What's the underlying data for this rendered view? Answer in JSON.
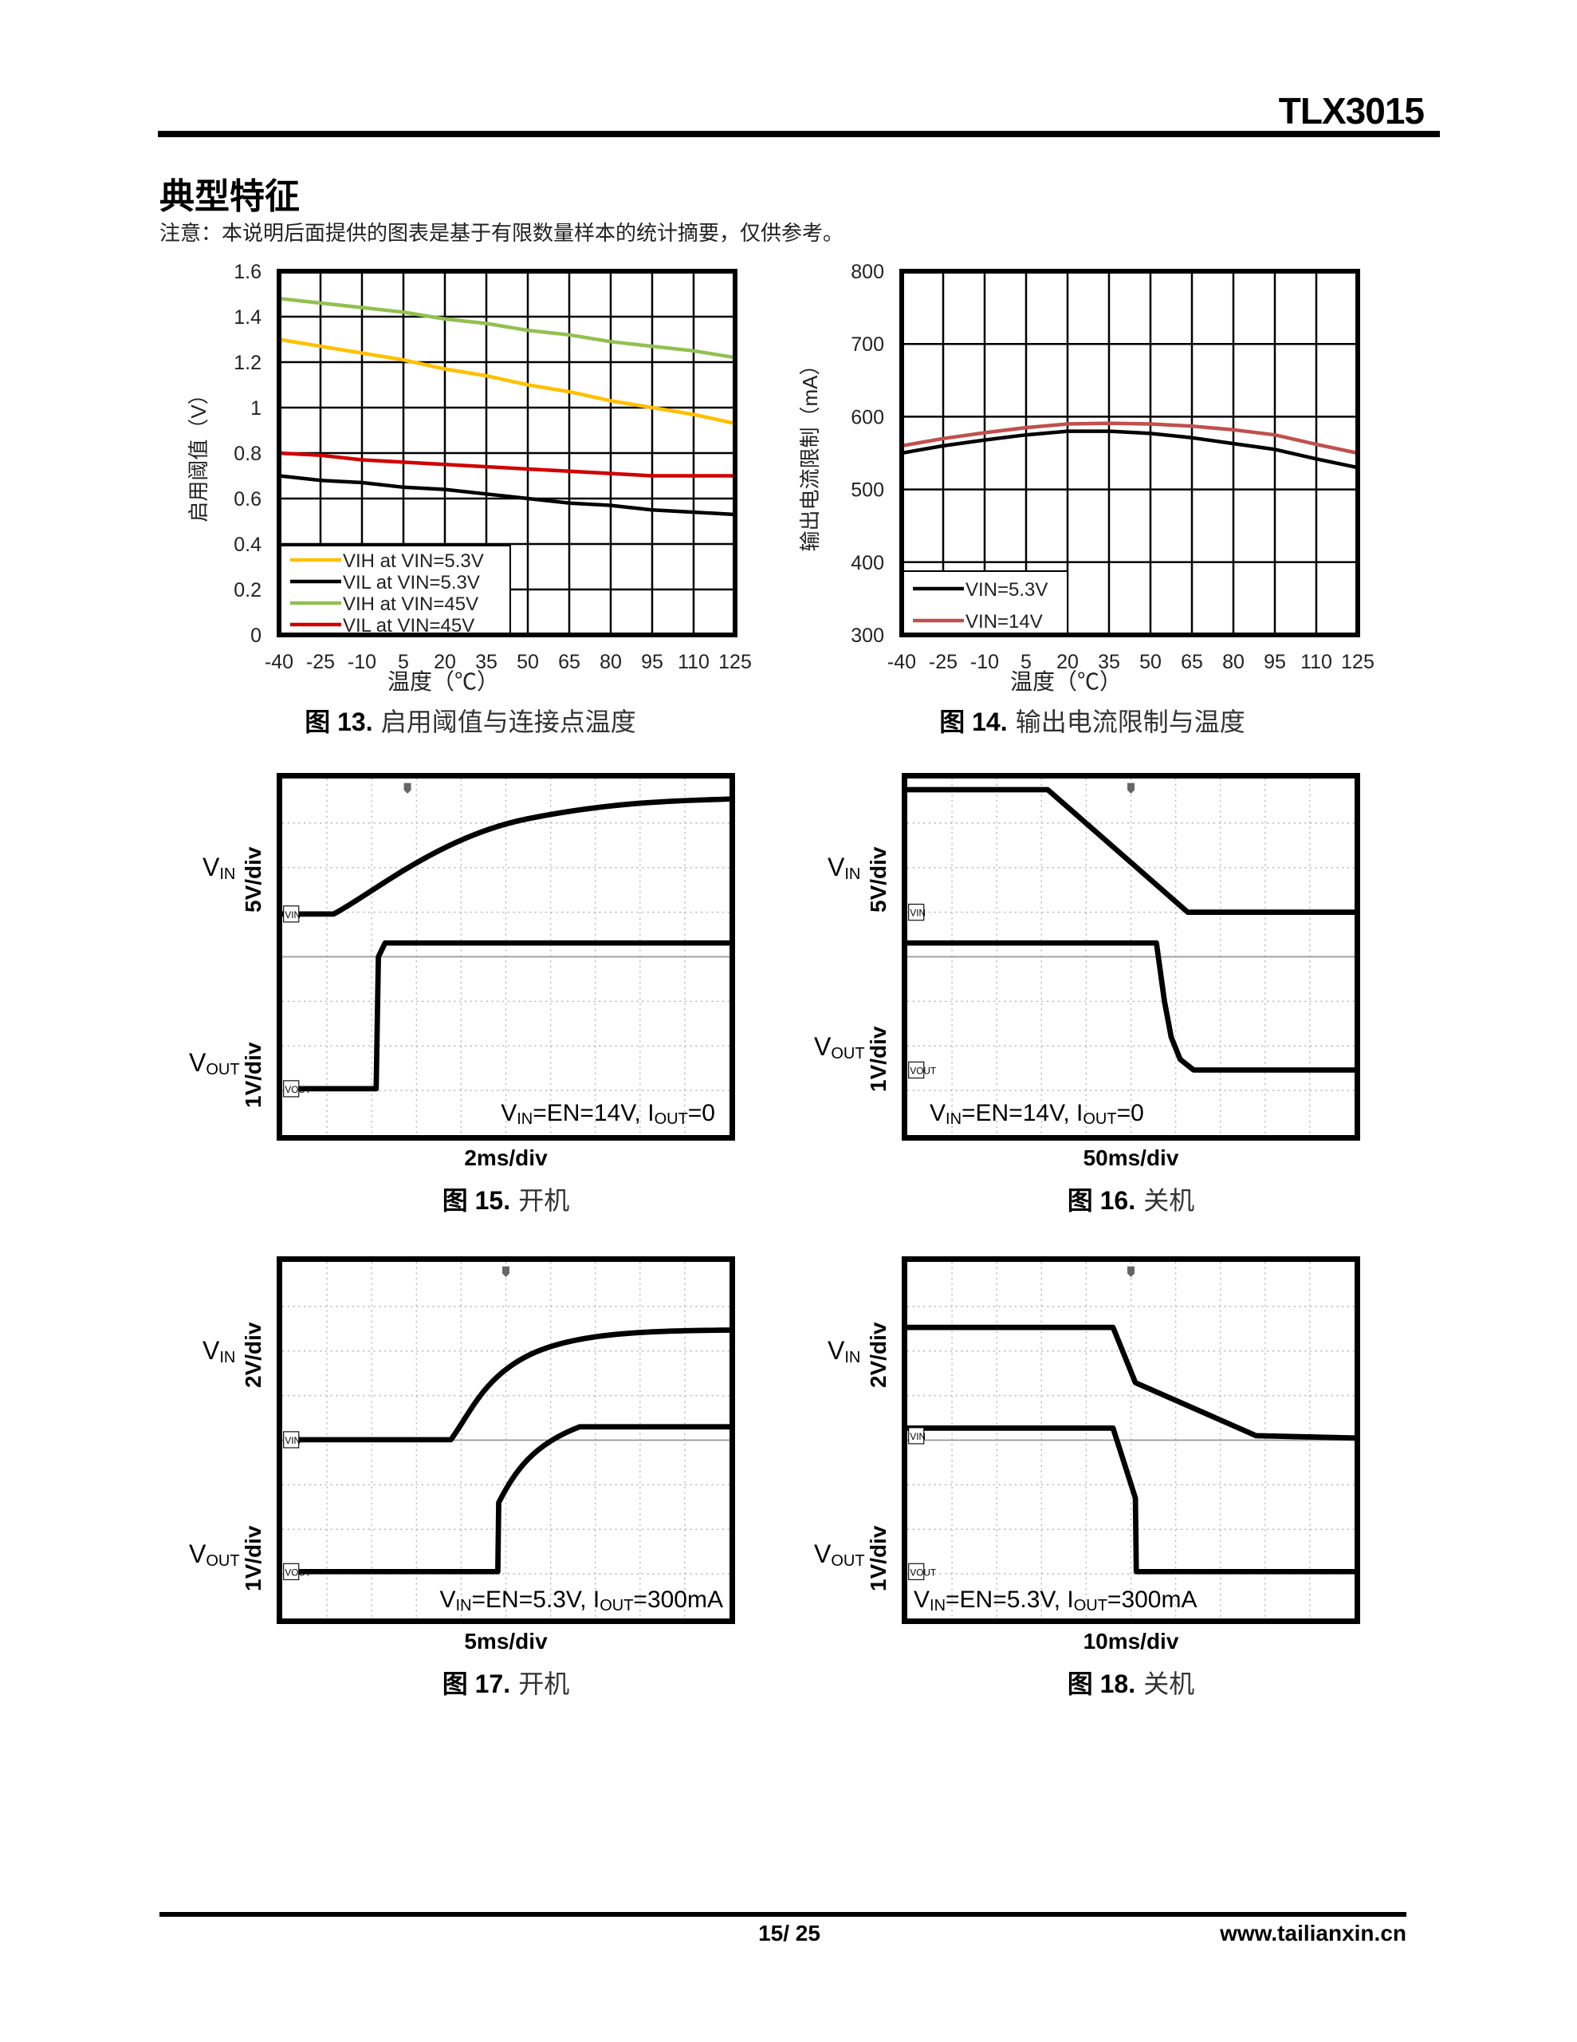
{
  "header": {
    "doc_id": "TLX3015",
    "section_title": "典型特征",
    "note": "注意：本说明后面提供的图表是基于有限数量样本的统计摘要，仅供参考。"
  },
  "chart_data": [
    {
      "type": "line",
      "id": "fig13",
      "title": "图 13. 启用阈值与连接点温度",
      "fig_label": "图 13.",
      "fig_text": "启用阈值与连接点温度",
      "xlabel": "温度（℃）",
      "ylabel": "启用阈值（V）",
      "x": [
        -40,
        -25,
        -10,
        5,
        20,
        35,
        50,
        65,
        80,
        95,
        110,
        125
      ],
      "xticks": [
        "-40",
        "-25",
        "-10",
        "5",
        "20",
        "35",
        "50",
        "65",
        "80",
        "95",
        "110",
        "125"
      ],
      "yticks": [
        "0",
        "0.2",
        "0.4",
        "0.6",
        "0.8",
        "1",
        "1.2",
        "1.4",
        "1.6"
      ],
      "ylim": [
        0,
        1.6
      ],
      "grid": true,
      "legend": "bottom-left",
      "series": [
        {
          "name": "VIH at VIN=5.3V",
          "color": "#ffc000",
          "values": [
            1.3,
            1.27,
            1.24,
            1.21,
            1.17,
            1.14,
            1.1,
            1.07,
            1.03,
            1.0,
            0.97,
            0.93
          ]
        },
        {
          "name": "VIL at VIN=5.3V",
          "color": "#000000",
          "values": [
            0.7,
            0.68,
            0.67,
            0.65,
            0.64,
            0.62,
            0.6,
            0.58,
            0.57,
            0.55,
            0.54,
            0.53
          ]
        },
        {
          "name": "VIH at VIN=45V",
          "color": "#92c050",
          "values": [
            1.48,
            1.46,
            1.44,
            1.42,
            1.39,
            1.37,
            1.34,
            1.32,
            1.29,
            1.27,
            1.25,
            1.22
          ]
        },
        {
          "name": "VIL at VIN=45V",
          "color": "#d00000",
          "values": [
            0.8,
            0.79,
            0.77,
            0.76,
            0.75,
            0.74,
            0.73,
            0.72,
            0.71,
            0.7,
            0.7,
            0.7
          ]
        }
      ]
    },
    {
      "type": "line",
      "id": "fig14",
      "title": "图 14. 输出电流限制与温度",
      "fig_label": "图 14.",
      "fig_text": "输出电流限制与温度",
      "xlabel": "温度（℃）",
      "ylabel": "输出电流限制（mA）",
      "x": [
        -40,
        -25,
        -10,
        5,
        20,
        35,
        50,
        65,
        80,
        95,
        110,
        125
      ],
      "xticks": [
        "-40",
        "-25",
        "-10",
        "5",
        "20",
        "35",
        "50",
        "65",
        "80",
        "95",
        "110",
        "125"
      ],
      "yticks": [
        "300",
        "400",
        "500",
        "600",
        "700",
        "800"
      ],
      "ylim": [
        300,
        800
      ],
      "grid": true,
      "legend": "bottom-left",
      "series": [
        {
          "name": "VIN=5.3V",
          "color": "#000000",
          "values": [
            550,
            560,
            568,
            575,
            580,
            580,
            577,
            571,
            563,
            555,
            542,
            530
          ]
        },
        {
          "name": "VIN=14V",
          "color": "#c0504d",
          "values": [
            560,
            570,
            578,
            585,
            590,
            591,
            590,
            587,
            582,
            575,
            562,
            550
          ]
        }
      ]
    }
  ],
  "scopes": [
    {
      "fig_label": "图 15.",
      "fig_text": "开机",
      "ch1_scale": "5V/div",
      "ch2_scale": "1V/div",
      "timebase": "2ms/div",
      "ch1_tag": "VIN",
      "ch2_tag": "VOUT",
      "condition": [
        {
          "t": "V"
        },
        {
          "t": "IN",
          "sub": true
        },
        {
          "t": "=EN=14V, I"
        },
        {
          "t": "OUT",
          "sub": true
        },
        {
          "t": "=0"
        }
      ]
    },
    {
      "fig_label": "图 16.",
      "fig_text": "关机",
      "ch1_scale": "5V/div",
      "ch2_scale": "1V/div",
      "timebase": "50ms/div",
      "ch1_tag": "VIN",
      "ch2_tag": "VOUT",
      "condition": [
        {
          "t": "V"
        },
        {
          "t": "IN",
          "sub": true
        },
        {
          "t": "=EN=14V, I"
        },
        {
          "t": "OUT",
          "sub": true
        },
        {
          "t": "=0"
        }
      ]
    },
    {
      "fig_label": "图 17.",
      "fig_text": "开机",
      "ch1_scale": "2V/div",
      "ch2_scale": "1V/div",
      "timebase": "5ms/div",
      "ch1_tag": "VIN",
      "ch2_tag": "VOUT",
      "condition": [
        {
          "t": "V"
        },
        {
          "t": "IN",
          "sub": true
        },
        {
          "t": "=EN=5.3V, I"
        },
        {
          "t": "OUT",
          "sub": true
        },
        {
          "t": "=300mA"
        }
      ]
    },
    {
      "fig_label": "图 18.",
      "fig_text": "关机",
      "ch1_scale": "2V/div",
      "ch2_scale": "1V/div",
      "timebase": "10ms/div",
      "ch1_tag": "VIN",
      "ch2_tag": "VOUT",
      "condition": [
        {
          "t": "V"
        },
        {
          "t": "IN",
          "sub": true
        },
        {
          "t": "=EN=5.3V, I"
        },
        {
          "t": "OUT",
          "sub": true
        },
        {
          "t": "=300mA"
        }
      ]
    }
  ],
  "channel_labels": {
    "vin_main": "V",
    "vin_sub": "IN",
    "vout_main": "V",
    "vout_sub": "OUT"
  },
  "footer": {
    "page": "15/ 25",
    "url": "www.tailianxin.cn"
  }
}
